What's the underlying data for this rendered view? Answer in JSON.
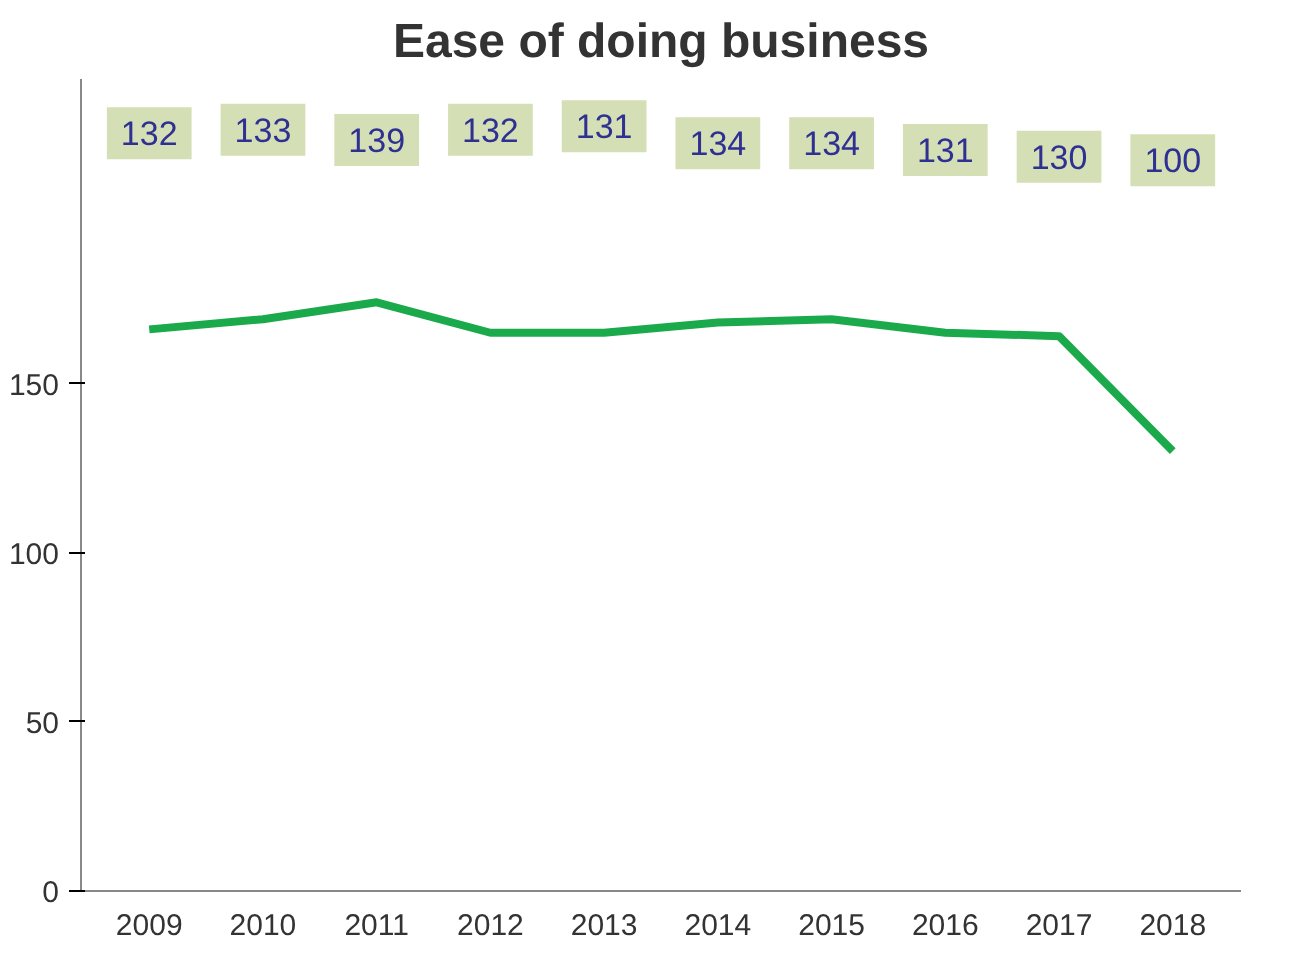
{
  "chart_data": {
    "type": "line",
    "title": "Ease of doing business",
    "categories": [
      "2009",
      "2010",
      "2011",
      "2012",
      "2013",
      "2014",
      "2015",
      "2016",
      "2017",
      "2018"
    ],
    "series": [
      {
        "color": "#1aaa4b",
        "values": [
          166,
          169,
          174,
          165,
          165,
          168,
          169,
          165,
          164,
          130
        ]
      }
    ],
    "annotations": [
      {
        "text": "132",
        "x": "2009",
        "y": 224
      },
      {
        "text": "133",
        "x": "2010",
        "y": 225
      },
      {
        "text": "139",
        "x": "2011",
        "y": 222
      },
      {
        "text": "132",
        "x": "2012",
        "y": 225
      },
      {
        "text": "131",
        "x": "2013",
        "y": 226
      },
      {
        "text": "134",
        "x": "2014",
        "y": 221
      },
      {
        "text": "134",
        "x": "2015",
        "y": 221
      },
      {
        "text": "131",
        "x": "2016",
        "y": 219
      },
      {
        "text": "130",
        "x": "2017",
        "y": 217
      },
      {
        "text": "100",
        "x": "2018",
        "y": 216
      }
    ],
    "ylim": [
      0,
      240
    ],
    "yticks": [
      0,
      50,
      100,
      150
    ],
    "line_style": "solid"
  }
}
